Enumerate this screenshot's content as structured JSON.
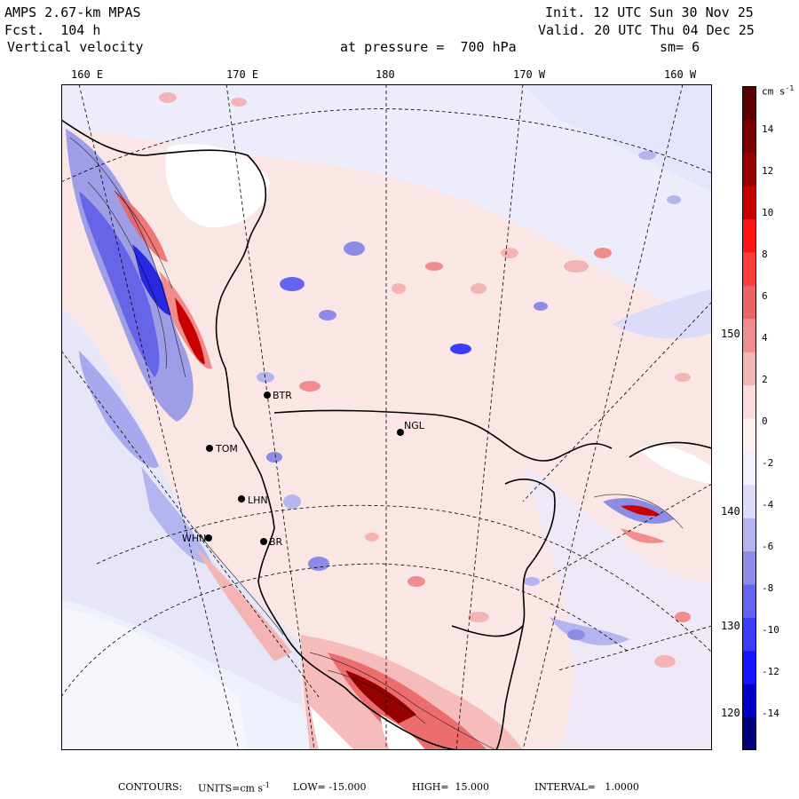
{
  "header": {
    "model": "AMPS 2.67-km MPAS",
    "forecast": "Fcst.  104 h",
    "field": "Vertical velocity",
    "init": "Init. 12 UTC Sun 30 Nov 25",
    "valid": "Valid. 20 UTC Thu 04 Dec 25",
    "level": "at pressure =  700 hPa",
    "smoothing": "sm= 6"
  },
  "longitude_labels": [
    "160 E",
    "170 E",
    "180",
    "170 W",
    "160 W"
  ],
  "latitude_labels": [
    "150 W",
    "140 W",
    "130 W",
    "120 W"
  ],
  "stations": [
    {
      "id": "NGL",
      "label": "NGL"
    },
    {
      "id": "BTR",
      "label": "BTR"
    },
    {
      "id": "TOM",
      "label": "TOM"
    },
    {
      "id": "LHN",
      "label": "LHN"
    },
    {
      "id": "WHN",
      "label": "WHN"
    },
    {
      "id": "BR",
      "label": "BR"
    }
  ],
  "colorbar": {
    "units": "cm s",
    "units_exp": "-1",
    "tick_labels": [
      "14",
      "12",
      "10",
      "8",
      "6",
      "4",
      "2",
      "0",
      "-2",
      "-4",
      "-6",
      "-8",
      "-10",
      "-12",
      "-14"
    ],
    "colors": [
      "#00007a",
      "#0000c8",
      "#1414ff",
      "#3c3cff",
      "#6464f0",
      "#8c8ce6",
      "#b4b4f0",
      "#dcdcfa",
      "#f0f0ff",
      "#fff0f0",
      "#fadcdc",
      "#f5b4b4",
      "#f08c8c",
      "#eb6464",
      "#ff3c3c",
      "#ff1414",
      "#c80000",
      "#960000",
      "#7a0000",
      "#5a0000"
    ]
  },
  "footer": {
    "contours": "CONTOURS:",
    "units": "UNITS=cm s",
    "units_exp": "-1",
    "low": "LOW= -15.000",
    "high": "HIGH=  15.000",
    "interval": "INTERVAL=   1.0000"
  }
}
